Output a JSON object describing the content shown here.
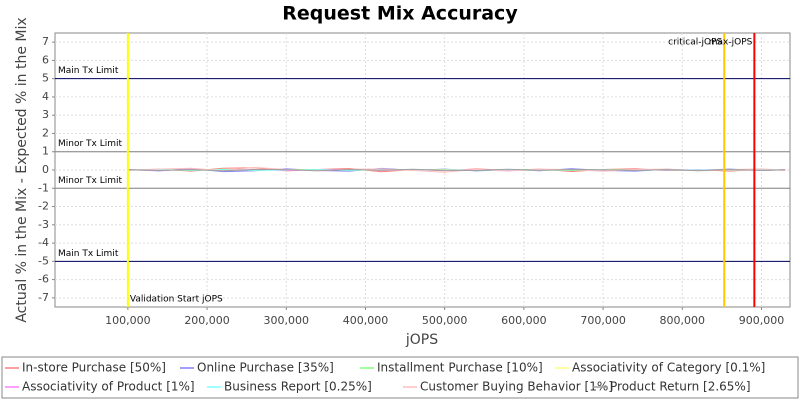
{
  "chart_data": {
    "type": "line",
    "title": "Request Mix Accuracy",
    "x_label": "jOPS",
    "y_label": "Actual % in the Mix - Expected % in the Mix",
    "xlim": [
      8000,
      936000
    ],
    "ylim": [
      -7.5,
      7.5
    ],
    "xticks": [
      {
        "value": 100000,
        "label": "100,000"
      },
      {
        "value": 200000,
        "label": "200,000"
      },
      {
        "value": 300000,
        "label": "300,000"
      },
      {
        "value": 400000,
        "label": "400,000"
      },
      {
        "value": 500000,
        "label": "500,000"
      },
      {
        "value": 600000,
        "label": "600,000"
      },
      {
        "value": 700000,
        "label": "700,000"
      },
      {
        "value": 800000,
        "label": "800,000"
      },
      {
        "value": 900000,
        "label": "900,000"
      }
    ],
    "yticks": [
      -7,
      -6,
      -5,
      -4,
      -3,
      -2,
      -1,
      0,
      1,
      2,
      3,
      4,
      5,
      6,
      7
    ],
    "grid": true,
    "x": [
      100000,
      140000,
      180000,
      220000,
      260000,
      300000,
      340000,
      380000,
      420000,
      460000,
      500000,
      540000,
      580000,
      620000,
      660000,
      700000,
      740000,
      780000,
      820000,
      860000,
      900000,
      930000
    ],
    "hmarkers": [
      {
        "value": 5,
        "label": "Main Tx Limit",
        "color": "#000060"
      },
      {
        "value": 1,
        "label": "Minor Tx Limit",
        "color": "#808080"
      },
      {
        "value": -1,
        "label": "Minor Tx Limit",
        "color": "#808080"
      },
      {
        "value": -5,
        "label": "Main Tx Limit",
        "color": "#000060"
      }
    ],
    "vmarkers": [
      {
        "value": 100000,
        "label": "Validation Start jOPS",
        "color": "#ffff00",
        "corner": "bottom-right"
      },
      {
        "value": 853000,
        "label": "critical-jOPS",
        "color": "#ffc800",
        "corner": "top-left"
      },
      {
        "value": 891000,
        "label": "max-jOPS",
        "color": "#ff0000",
        "corner": "top-left"
      }
    ],
    "series": [
      {
        "name": "In-store Purchase [50%]",
        "color": "#ff7f7f",
        "values": [
          0,
          0.04,
          -0.06,
          0.1,
          0.12,
          -0.05,
          0.03,
          0.08,
          -0.1,
          0.02,
          -0.04,
          0.06,
          -0.02,
          0.05,
          -0.08,
          0.03,
          0.07,
          -0.03,
          0.01,
          -0.06,
          0.04,
          -0.02
        ]
      },
      {
        "name": "Online Purchase [35%]",
        "color": "#7f7fff",
        "values": [
          0.02,
          -0.05,
          0.08,
          -0.09,
          -0.04,
          0.06,
          -0.03,
          -0.06,
          0.09,
          -0.02,
          0.05,
          -0.05,
          0.03,
          -0.04,
          0.07,
          -0.02,
          -0.06,
          0.04,
          -0.01,
          0.05,
          -0.03,
          0.01
        ]
      },
      {
        "name": "Installment Purchase [10%]",
        "color": "#7fff7f",
        "values": [
          -0.01,
          0.02,
          -0.03,
          0.04,
          -0.02,
          0.01,
          0.03,
          -0.02,
          0.02,
          -0.01,
          0.03,
          -0.02,
          0.01,
          0.02,
          -0.03,
          0.01,
          0.02,
          -0.01,
          0,
          0.02,
          -0.01,
          0
        ]
      },
      {
        "name": "Associativity of Category [0.1%]",
        "color": "#ffff7f",
        "values": [
          0,
          0.01,
          0,
          -0.01,
          0,
          0.01,
          0,
          0,
          -0.01,
          0,
          0.01,
          0,
          0,
          -0.01,
          0,
          0.01,
          0,
          0,
          0,
          -0.01,
          0,
          0
        ]
      },
      {
        "name": "Associativity of Product [1%]",
        "color": "#ff7fff",
        "values": [
          0.01,
          -0.02,
          0.03,
          -0.01,
          0.02,
          -0.03,
          0.01,
          0.02,
          -0.02,
          0.01,
          -0.01,
          0.02,
          -0.02,
          0.01,
          0.01,
          -0.02,
          0.02,
          -0.01,
          0.01,
          0,
          -0.01,
          0.01
        ]
      },
      {
        "name": "Business Report [0.25%]",
        "color": "#7fffff",
        "values": [
          0,
          0.01,
          -0.01,
          0.02,
          -0.01,
          0,
          0.01,
          -0.01,
          0.01,
          0.02,
          -0.01,
          0,
          0.01,
          -0.01,
          0,
          0.01,
          -0.01,
          0.01,
          0,
          0,
          0.01,
          0
        ]
      },
      {
        "name": "Customer Buying Behavior [1%]",
        "color": "#ffbfbf",
        "values": [
          -0.02,
          0.05,
          0.1,
          -0.04,
          0.14,
          0.03,
          -0.05,
          0.04,
          0.06,
          -0.03,
          -0.12,
          0.04,
          -0.06,
          0.05,
          0.02,
          -0.07,
          0.03,
          0.05,
          -0.04,
          0.02,
          0.06,
          -0.03
        ]
      },
      {
        "name": "Product Return [2.65%]",
        "color": "#a0a0a0",
        "values": [
          0.01,
          -0.03,
          0.02,
          -0.05,
          0.03,
          0.02,
          -0.04,
          0.03,
          -0.01,
          0.04,
          -0.02,
          -0.03,
          0.04,
          -0.02,
          0.03,
          0.01,
          -0.03,
          0.02,
          -0.04,
          0.03,
          -0.02,
          0.01
        ]
      }
    ]
  }
}
